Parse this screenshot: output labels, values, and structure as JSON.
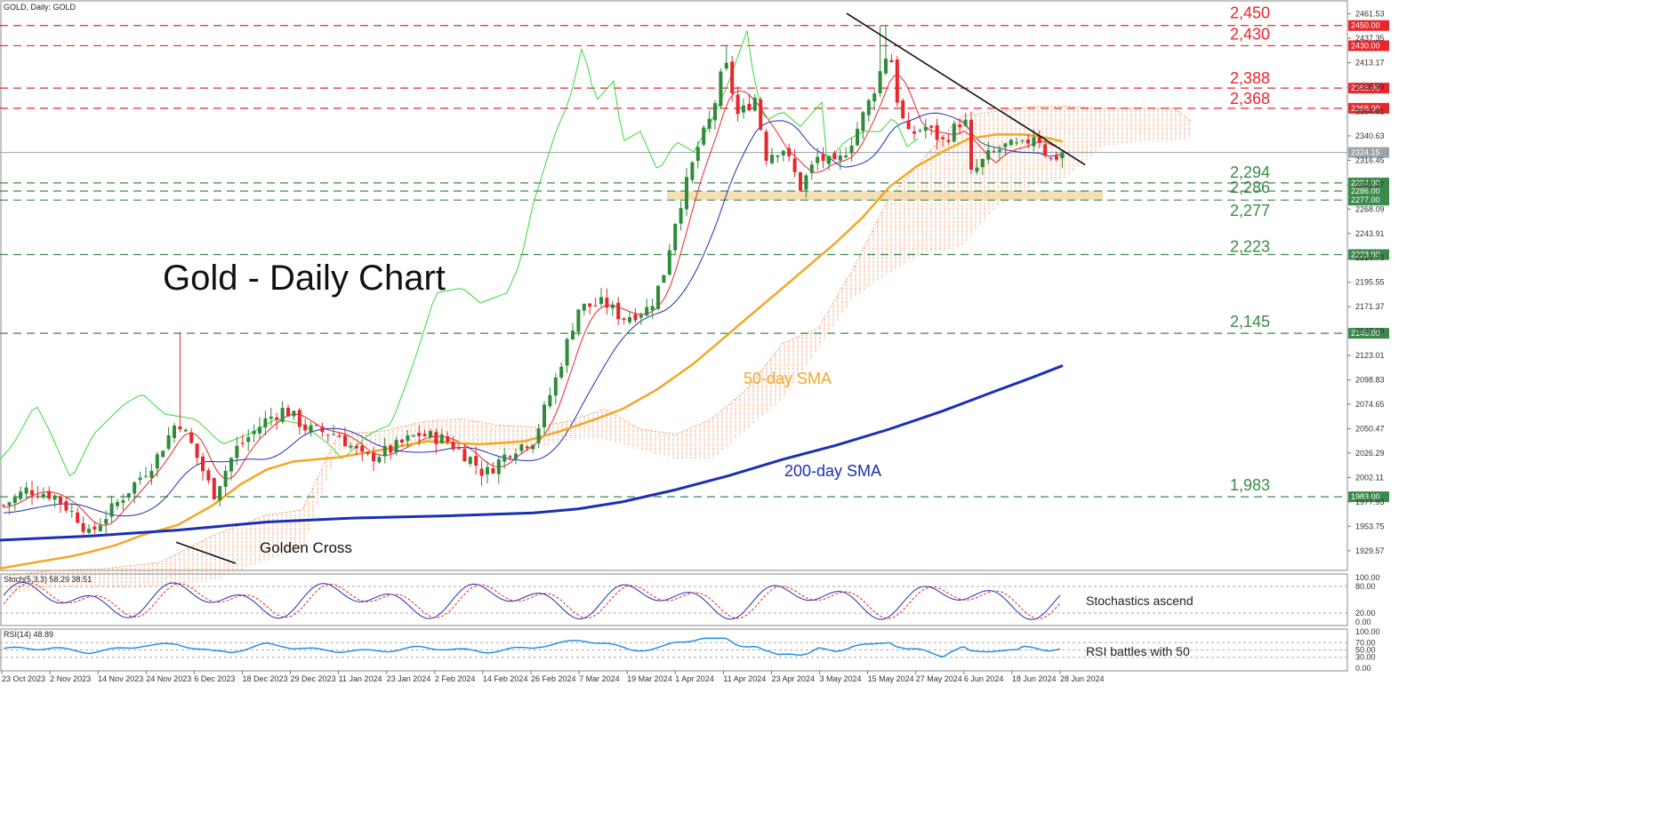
{
  "header": {
    "symbol_label": "GOLD, Daily:  GOLD"
  },
  "title": "Gold - Daily Chart",
  "chart_data": [
    {
      "type": "candlestick",
      "title": "Gold - Daily Chart",
      "ylim": [
        1910,
        2470
      ],
      "x_ticks": [
        "23 Oct 2023",
        "2 Nov 2023",
        "14 Nov 2023",
        "24 Nov 2023",
        "6 Dec 2023",
        "18 Dec 2023",
        "29 Dec 2023",
        "11 Jan 2024",
        "23 Jan 2024",
        "2 Feb 2024",
        "14 Feb 2024",
        "26 Feb 2024",
        "7 Mar 2024",
        "19 Mar 2024",
        "1 Apr 2024",
        "11 Apr 2024",
        "23 Apr 2024",
        "3 May 2024",
        "15 May 2024",
        "27 May 2024",
        "6 Jun 2024",
        "18 Jun 2024",
        "28 Jun 2024"
      ],
      "y_ticks": [
        "2461.53",
        "2437.35",
        "2413.17",
        "2388.99",
        "2364.81",
        "2340.63",
        "2316.45",
        "2292.27",
        "2268.09",
        "2243.91",
        "2219.73",
        "2195.55",
        "2171.37",
        "2147.19",
        "2123.01",
        "2098.83",
        "2074.65",
        "2050.47",
        "2026.29",
        "2002.11",
        "1977.93",
        "1953.75",
        "1929.57"
      ],
      "current_price": "2324.15",
      "levels": [
        {
          "label": "2,450",
          "tag": "2450.00",
          "value": 2450,
          "color": "#e8262b"
        },
        {
          "label": "2,430",
          "tag": "2430.00",
          "value": 2430,
          "color": "#e8262b"
        },
        {
          "label": "2,388",
          "tag": "2388.00",
          "value": 2388,
          "color": "#e8262b"
        },
        {
          "label": "2,368",
          "tag": "2368.00",
          "value": 2368,
          "color": "#e8262b"
        },
        {
          "label": "2,294",
          "tag": "2294.00",
          "value": 2294,
          "color": "#3a8a4a"
        },
        {
          "label": "2,286",
          "tag": "2286.00",
          "value": 2286,
          "color": "#3a8a4a"
        },
        {
          "label": "2,277",
          "tag": "2277.00",
          "value": 2277,
          "color": "#3a8a4a"
        },
        {
          "label": "2,223",
          "tag": "2223.00",
          "value": 2223,
          "color": "#3a8a4a"
        },
        {
          "label": "2,145",
          "tag": "2145.00",
          "value": 2145,
          "color": "#3a8a4a"
        },
        {
          "label": "1,983",
          "tag": "1983.00",
          "value": 1983,
          "color": "#3a8a4a"
        }
      ],
      "series": [
        {
          "name": "50-day SMA",
          "color": "#f5a623",
          "points": [
            [
              0,
              1912
            ],
            [
              40,
              1918
            ],
            [
              80,
              1924
            ],
            [
              100,
              1928
            ],
            [
              130,
              1935
            ],
            [
              160,
              1945
            ],
            [
              200,
              1955
            ],
            [
              240,
              1975
            ],
            [
              270,
              1995
            ],
            [
              300,
              2010
            ],
            [
              330,
              2018
            ],
            [
              380,
              2022
            ],
            [
              420,
              2028
            ],
            [
              480,
              2038
            ],
            [
              540,
              2035
            ],
            [
              590,
              2038
            ],
            [
              630,
              2048
            ],
            [
              670,
              2060
            ],
            [
              700,
              2070
            ],
            [
              740,
              2090
            ],
            [
              780,
              2115
            ],
            [
              820,
              2145
            ],
            [
              860,
              2175
            ],
            [
              900,
              2205
            ],
            [
              940,
              2235
            ],
            [
              970,
              2260
            ],
            [
              1000,
              2290
            ],
            [
              1030,
              2310
            ],
            [
              1060,
              2325
            ],
            [
              1090,
              2338
            ],
            [
              1120,
              2342
            ],
            [
              1150,
              2342
            ],
            [
              1170,
              2340
            ],
            [
              1195,
              2335
            ]
          ]
        },
        {
          "name": "200-day SMA",
          "color": "#1a2fb5",
          "points": [
            [
              0,
              1940
            ],
            [
              100,
              1944
            ],
            [
              200,
              1950
            ],
            [
              300,
              1958
            ],
            [
              400,
              1962
            ],
            [
              500,
              1964
            ],
            [
              600,
              1967
            ],
            [
              650,
              1971
            ],
            [
              700,
              1978
            ],
            [
              760,
              1990
            ],
            [
              820,
              2004
            ],
            [
              880,
              2020
            ],
            [
              940,
              2034
            ],
            [
              1000,
              2050
            ],
            [
              1060,
              2068
            ],
            [
              1120,
              2088
            ],
            [
              1160,
              2101
            ],
            [
              1195,
              2113
            ]
          ]
        }
      ],
      "cloud": {
        "upper": [
          [
            10,
            1905
          ],
          [
            60,
            1910
          ],
          [
            120,
            1912
          ],
          [
            180,
            1918
          ],
          [
            240,
            1945
          ],
          [
            300,
            1965
          ],
          [
            340,
            1970
          ],
          [
            380,
            2045
          ],
          [
            430,
            2048
          ],
          [
            480,
            2058
          ],
          [
            520,
            2060
          ],
          [
            560,
            2054
          ],
          [
            600,
            2052
          ],
          [
            640,
            2058
          ],
          [
            680,
            2070
          ],
          [
            720,
            2050
          ],
          [
            760,
            2045
          ],
          [
            800,
            2060
          ],
          [
            840,
            2090
          ],
          [
            880,
            2135
          ],
          [
            920,
            2150
          ],
          [
            960,
            2210
          ],
          [
            1000,
            2280
          ],
          [
            1040,
            2320
          ],
          [
            1080,
            2360
          ],
          [
            1120,
            2365
          ],
          [
            1160,
            2370
          ],
          [
            1200,
            2370
          ],
          [
            1240,
            2368
          ],
          [
            1280,
            2368
          ],
          [
            1320,
            2368
          ],
          [
            1340,
            2355
          ]
        ],
        "lower": [
          [
            10,
            1888
          ],
          [
            60,
            1892
          ],
          [
            120,
            1893
          ],
          [
            180,
            1894
          ],
          [
            240,
            1900
          ],
          [
            300,
            1920
          ],
          [
            340,
            1932
          ],
          [
            380,
            2030
          ],
          [
            430,
            2034
          ],
          [
            480,
            2036
          ],
          [
            520,
            2038
          ],
          [
            560,
            2030
          ],
          [
            600,
            2030
          ],
          [
            640,
            2040
          ],
          [
            680,
            2040
          ],
          [
            720,
            2030
          ],
          [
            760,
            2020
          ],
          [
            800,
            2020
          ],
          [
            840,
            2050
          ],
          [
            880,
            2080
          ],
          [
            920,
            2130
          ],
          [
            960,
            2180
          ],
          [
            1000,
            2205
          ],
          [
            1040,
            2225
          ],
          [
            1080,
            2230
          ],
          [
            1120,
            2270
          ],
          [
            1160,
            2290
          ],
          [
            1200,
            2300
          ],
          [
            1240,
            2330
          ],
          [
            1280,
            2335
          ],
          [
            1320,
            2335
          ],
          [
            1340,
            2340
          ]
        ]
      },
      "trendlines": [
        {
          "name": "descending-trendline",
          "from": [
            952,
            2462
          ],
          "to": [
            1220,
            2312
          ],
          "color": "#111111"
        },
        {
          "name": "golden-cross-pointer",
          "from": [
            198,
            1938
          ],
          "to": [
            265,
            1917
          ],
          "color": "#111111"
        }
      ],
      "support_zone": {
        "from": 2277,
        "to": 2286,
        "x_start": 750,
        "x_end": 1240,
        "color": "#f3d9a8"
      },
      "annotations": [
        {
          "text": "50-day SMA",
          "color": "#f5a623"
        },
        {
          "text": "200-day SMA",
          "color": "#1a2fb5"
        },
        {
          "text": "Golden Cross",
          "color": "#111111"
        }
      ]
    },
    {
      "type": "line",
      "title": "Stoch(5,3,3) 58.29 38.51",
      "label_text": "Stochastics ascend",
      "ylim": [
        0,
        100
      ],
      "y_ticks": [
        "100.00",
        "80.00",
        "20.00",
        "0.00"
      ]
    },
    {
      "type": "line",
      "title": "RSI(14) 48.89",
      "label_text": "RSI battles with 50",
      "ylim": [
        0,
        100
      ],
      "y_ticks": [
        "100.00",
        "70.00",
        "50.00",
        "30.00",
        "0.00"
      ]
    }
  ],
  "colors": {
    "up": "#2e8b3a",
    "down": "#e8262b",
    "tenkan": "#e8262b",
    "kijun": "#1a2fb5",
    "chikou": "#39d939",
    "cloud": "#f0a070",
    "stoch_main": "#1a2fb5",
    "stoch_signal": "#e8262b",
    "rsi": "#1e88e5"
  }
}
